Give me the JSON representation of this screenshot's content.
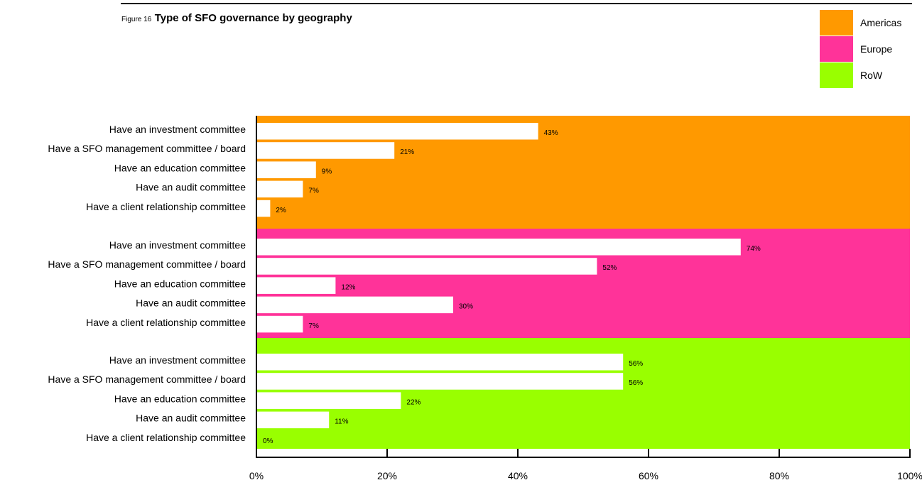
{
  "figure": {
    "prefix": "Figure 16",
    "title": "Type of SFO governance by geography"
  },
  "legend": [
    {
      "label": "Americas",
      "color": "#FF9900"
    },
    {
      "label": "Europe",
      "color": "#FF3399"
    },
    {
      "label": "RoW",
      "color": "#99FF00"
    }
  ],
  "chart_data": {
    "type": "bar",
    "orientation": "horizontal",
    "title": "Type of SFO governance by geography",
    "xlim": [
      0,
      100
    ],
    "x_ticks": [
      "0%",
      "20%",
      "40%",
      "60%",
      "80%",
      "100%"
    ],
    "tick_values": [
      0,
      20,
      40,
      60,
      80,
      100
    ],
    "value_suffix": "%",
    "legend_position": "top-right",
    "grid": false,
    "groups": [
      {
        "name": "Americas",
        "color": "#FF9900",
        "categories": [
          "Have an investment committee",
          "Have a SFO management committee / board",
          "Have an education committee",
          "Have an audit committee",
          "Have a client relationship committee"
        ],
        "values": [
          43,
          21,
          9,
          7,
          2
        ]
      },
      {
        "name": "Europe",
        "color": "#FF3399",
        "categories": [
          "Have an investment committee",
          "Have a SFO management committee / board",
          "Have an education committee",
          "Have an audit committee",
          "Have a client relationship committee"
        ],
        "values": [
          74,
          52,
          12,
          30,
          7
        ]
      },
      {
        "name": "RoW",
        "color": "#99FF00",
        "categories": [
          "Have an investment committee",
          "Have a SFO management committee / board",
          "Have an education committee",
          "Have an audit committee",
          "Have a client relationship committee"
        ],
        "values": [
          56,
          56,
          22,
          11,
          0
        ]
      }
    ]
  }
}
